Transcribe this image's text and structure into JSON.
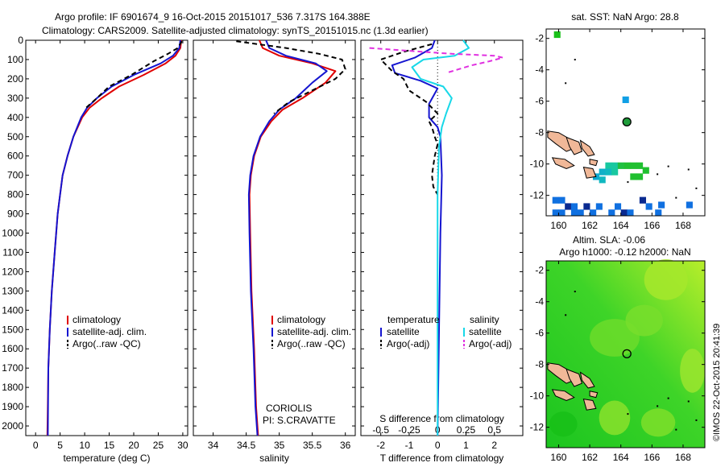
{
  "header": {
    "line1": "Argo profile: IF 6901674_9 16-Oct-2015 20151017_536 7.317S 164.388E",
    "line2": "Climatology: CARS2009. Satellite-adjusted climatology: synTS_20151015.nc (1.3d earlier)"
  },
  "colors": {
    "climatology": "#e00000",
    "satellite": "#1515d0",
    "argo": "#000000",
    "sat_salinity": "#18d8e8",
    "argo_salinity": "#e030e0",
    "land": "#f0b898",
    "field_green": "#22cc22"
  },
  "chart_data": [
    {
      "type": "line",
      "xlabel": "temperature (deg C)",
      "ylabel": "",
      "xlim": [
        -2,
        31
      ],
      "ylim": [
        2050,
        0
      ],
      "xticks": [
        0,
        5,
        10,
        15,
        20,
        25,
        30
      ],
      "yticks": [
        0,
        100,
        200,
        300,
        400,
        500,
        600,
        700,
        800,
        900,
        1000,
        1100,
        1200,
        1300,
        1400,
        1500,
        1600,
        1700,
        1800,
        1900,
        2000
      ],
      "legend": [
        "climatology",
        "satellite-adj. clim.",
        "Argo(..raw -QC)"
      ],
      "series": [
        {
          "name": "climatology",
          "color": "#e00000",
          "x": [
            29.7,
            29.5,
            28.5,
            26.5,
            22,
            17,
            13.5,
            11,
            9.5,
            7.7,
            6.5,
            5.5,
            5.0,
            4.5,
            3.9,
            3.3,
            2.9,
            2.6,
            2.4
          ],
          "y": [
            0,
            40,
            80,
            120,
            180,
            240,
            300,
            350,
            400,
            500,
            600,
            700,
            800,
            900,
            1100,
            1300,
            1500,
            1700,
            2050
          ]
        },
        {
          "name": "satellite-adj. clim.",
          "color": "#1515d0",
          "x": [
            29.5,
            29.3,
            28,
            25.5,
            20,
            15.5,
            12.5,
            10.5,
            9.3,
            7.7,
            6.5,
            5.5,
            5.0,
            4.5,
            3.9,
            3.3,
            2.9,
            2.6,
            2.5
          ],
          "y": [
            0,
            40,
            80,
            120,
            180,
            240,
            300,
            350,
            400,
            500,
            600,
            700,
            800,
            900,
            1100,
            1300,
            1500,
            1700,
            2050
          ]
        },
        {
          "name": "Argo(..raw -QC)",
          "color": "#000000",
          "dashed": true,
          "x": [
            29.8,
            29.0,
            27,
            24,
            19.5,
            15,
            12.5,
            10.3
          ],
          "y": [
            5,
            40,
            70,
            110,
            180,
            240,
            300,
            350
          ]
        }
      ],
      "annotations": []
    },
    {
      "type": "line",
      "xlabel": "salinity",
      "ylabel": "",
      "xlim": [
        33.7,
        36.15
      ],
      "ylim": [
        2050,
        0
      ],
      "xticks": [
        34,
        34.5,
        35,
        35.5,
        36
      ],
      "legend": [
        "climatology",
        "satellite-adj. clim.",
        "Argo(..raw -QC)"
      ],
      "series": [
        {
          "name": "climatology",
          "color": "#e00000",
          "x": [
            34.7,
            34.75,
            35.0,
            35.5,
            35.85,
            35.7,
            35.35,
            35.05,
            34.88,
            34.72,
            34.62,
            34.57,
            34.55,
            34.56,
            34.58,
            34.62,
            34.65,
            34.68
          ],
          "y": [
            0,
            40,
            80,
            120,
            160,
            220,
            300,
            360,
            420,
            500,
            600,
            700,
            800,
            1000,
            1300,
            1600,
            1900,
            2050
          ]
        },
        {
          "name": "satellite-adj. clim.",
          "color": "#1515d0",
          "x": [
            34.8,
            34.85,
            35.1,
            35.55,
            35.72,
            35.5,
            35.25,
            35.0,
            34.85,
            34.71,
            34.61,
            34.56,
            34.54,
            34.55,
            34.57,
            34.61,
            34.64,
            34.67
          ],
          "y": [
            0,
            40,
            80,
            120,
            160,
            220,
            300,
            360,
            420,
            500,
            600,
            700,
            800,
            1000,
            1300,
            1600,
            1900,
            2050
          ]
        },
        {
          "name": "Argo(..raw -QC)",
          "color": "#000000",
          "dashed": true,
          "x": [
            34.35,
            35.1,
            35.6,
            35.95,
            36.0,
            35.85,
            35.5,
            35.15,
            34.92
          ],
          "y": [
            5,
            40,
            70,
            100,
            150,
            200,
            260,
            320,
            380
          ]
        }
      ],
      "annotations": [
        "CORIOLIS",
        "PI: S.CRAVATTE"
      ]
    },
    {
      "type": "line",
      "xlabel": "T difference from climatology",
      "xlabel_top": "S difference from climatology",
      "xlim": [
        -2.7,
        3.0
      ],
      "ylim": [
        2050,
        0
      ],
      "xticks": [
        -2,
        -1,
        0,
        1,
        2
      ],
      "xticks_s": [
        -0.5,
        -0.25,
        0,
        0.25,
        0.5
      ],
      "legend_temperature": {
        "title": "temperature",
        "items": [
          "satellite",
          "Argo(-adj)"
        ]
      },
      "legend_salinity": {
        "title": "salinity",
        "items": [
          "satellite",
          "Argo(-adj)"
        ]
      },
      "series": [
        {
          "name": "temperature satellite",
          "color": "#1515d0",
          "x": [
            -0.1,
            -0.2,
            -0.8,
            -1.6,
            -1.5,
            -0.6,
            0.0,
            -0.3,
            -0.3,
            0.0,
            0.1,
            0.15,
            0.1,
            0.05,
            0.0
          ],
          "y": [
            0,
            40,
            90,
            130,
            170,
            210,
            250,
            330,
            400,
            450,
            500,
            700,
            1000,
            1500,
            2050
          ]
        },
        {
          "name": "temperature Argo(-adj)",
          "color": "#000000",
          "dashed": true,
          "x": [
            -0.2,
            -1.2,
            -2.0,
            -1.6,
            -1.2,
            -1.0,
            -0.4,
            0.0,
            -0.3,
            -0.2,
            -0.1,
            0.0,
            -0.1,
            -0.2,
            -0.15,
            0.0
          ],
          "y": [
            20,
            60,
            100,
            160,
            200,
            260,
            320,
            380,
            420,
            450,
            500,
            540,
            600,
            700,
            760,
            800
          ]
        },
        {
          "name": "salinity satellite",
          "color": "#18d8e8",
          "x": [
            0.9,
            1.1,
            0.6,
            -0.5,
            -0.9,
            -0.6,
            0.2,
            0.5,
            0.3,
            0.15,
            0.05,
            0.0,
            0.0,
            0.0
          ],
          "y": [
            0,
            40,
            80,
            100,
            140,
            200,
            240,
            300,
            380,
            450,
            550,
            800,
            1300,
            2050
          ]
        },
        {
          "name": "salinity Argo(-adj)",
          "color": "#e030e0",
          "dashed": true,
          "x": [
            -2.4,
            -0.5,
            0.5,
            2.0,
            2.3,
            1.8,
            1.2,
            0.3
          ],
          "y": [
            40,
            60,
            70,
            80,
            90,
            110,
            130,
            170
          ]
        }
      ]
    },
    {
      "type": "heatmap",
      "title": "sat. SST: NaN Argo: 28.8",
      "xlim": [
        159.2,
        169.4
      ],
      "ylim": [
        -13.3,
        -1.4
      ],
      "xticks": [
        160,
        162,
        164,
        166,
        168
      ],
      "yticks": [
        -2,
        -4,
        -6,
        -8,
        -10,
        -12
      ],
      "argo_position": {
        "lon": 164.388,
        "lat": -7.317
      }
    },
    {
      "type": "heatmap",
      "title": "Altim. SLA: -0.06",
      "subtitle": "Argo h1000: -0.12 h2000: NaN",
      "xlim": [
        159.2,
        169.4
      ],
      "ylim": [
        -13.3,
        -1.4
      ],
      "xticks": [
        160,
        162,
        164,
        166,
        168
      ],
      "yticks": [
        -2,
        -4,
        -6,
        -8,
        -10,
        -12
      ],
      "argo_position": {
        "lon": 164.388,
        "lat": -7.317
      }
    }
  ],
  "credit": "©IMOS 22-Oct-2015 20:41:39"
}
